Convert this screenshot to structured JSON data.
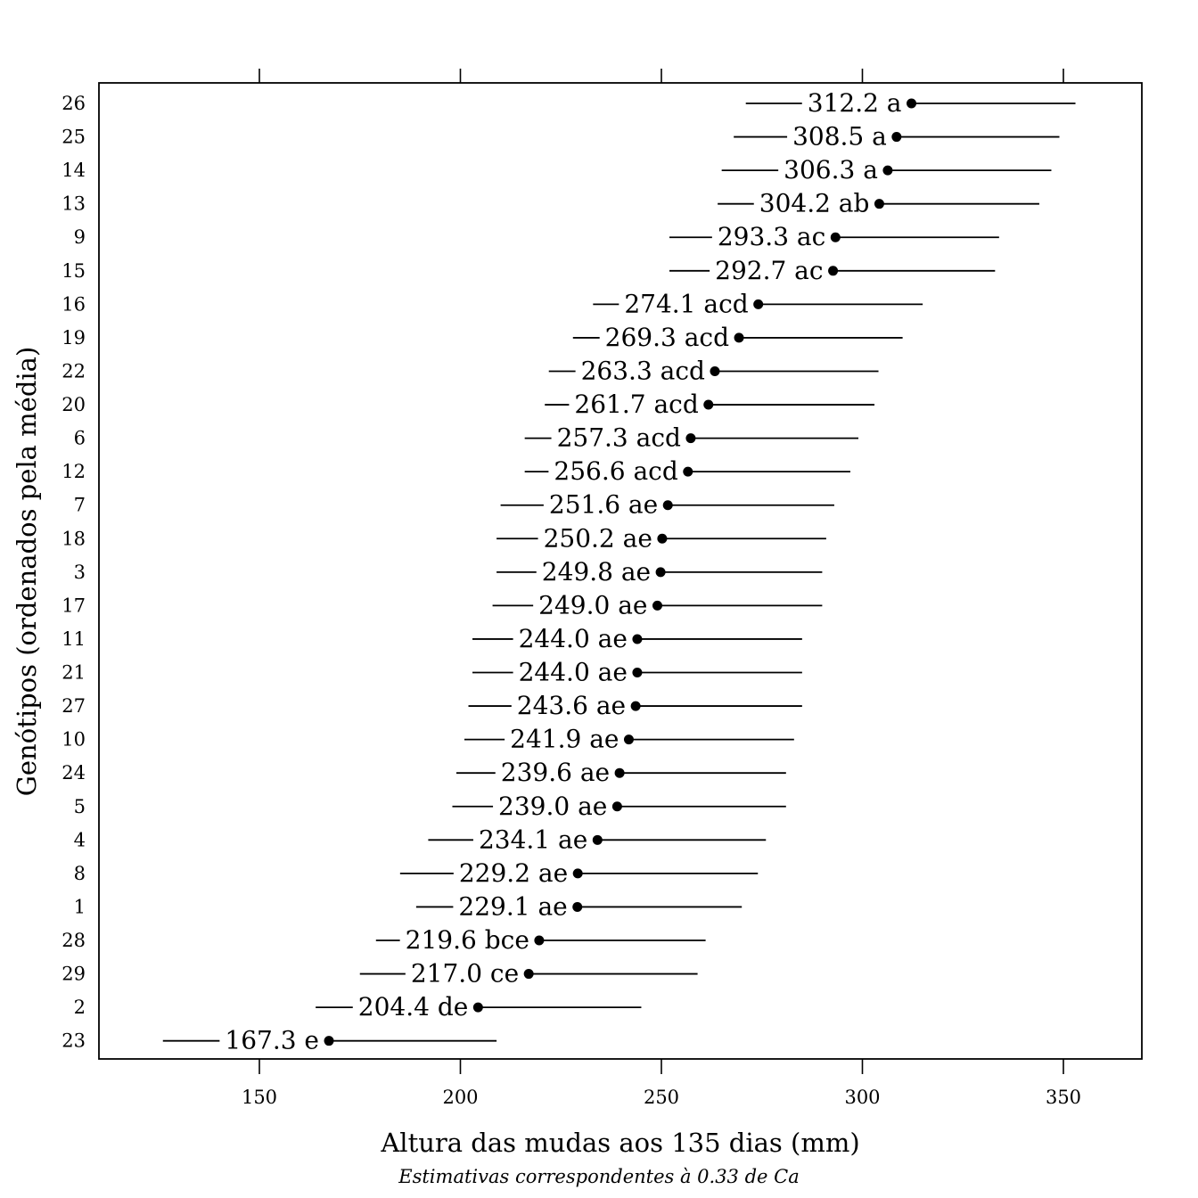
{
  "chart_data": {
    "type": "scatter",
    "subtype": "dot-plot-with-intervals",
    "xlabel": "Altura das mudas aos 135 dias (mm)",
    "subtitle": "Estimativas correspondentes à 0.33 de Ca",
    "ylabel": "Genótipos (ordenados pela média)",
    "xlim": [
      110,
      370
    ],
    "xticks": [
      150,
      200,
      250,
      300,
      350
    ],
    "grid": false,
    "points": [
      {
        "genotype": "26",
        "mean": 312.2,
        "lower": 271,
        "upper": 353,
        "label": "312.2 a"
      },
      {
        "genotype": "25",
        "mean": 308.5,
        "lower": 268,
        "upper": 349,
        "label": "308.5 a"
      },
      {
        "genotype": "14",
        "mean": 306.3,
        "lower": 265,
        "upper": 347,
        "label": "306.3 a"
      },
      {
        "genotype": "13",
        "mean": 304.2,
        "lower": 264,
        "upper": 344,
        "label": "304.2 ab"
      },
      {
        "genotype": "9",
        "mean": 293.3,
        "lower": 252,
        "upper": 334,
        "label": "293.3 ac"
      },
      {
        "genotype": "15",
        "mean": 292.7,
        "lower": 252,
        "upper": 333,
        "label": "292.7 ac"
      },
      {
        "genotype": "16",
        "mean": 274.1,
        "lower": 233,
        "upper": 315,
        "label": "274.1 acd"
      },
      {
        "genotype": "19",
        "mean": 269.3,
        "lower": 228,
        "upper": 310,
        "label": "269.3 acd"
      },
      {
        "genotype": "22",
        "mean": 263.3,
        "lower": 222,
        "upper": 304,
        "label": "263.3 acd"
      },
      {
        "genotype": "20",
        "mean": 261.7,
        "lower": 221,
        "upper": 303,
        "label": "261.7 acd"
      },
      {
        "genotype": "6",
        "mean": 257.3,
        "lower": 216,
        "upper": 299,
        "label": "257.3 acd"
      },
      {
        "genotype": "12",
        "mean": 256.6,
        "lower": 216,
        "upper": 297,
        "label": "256.6 acd"
      },
      {
        "genotype": "7",
        "mean": 251.6,
        "lower": 210,
        "upper": 293,
        "label": "251.6 ae"
      },
      {
        "genotype": "18",
        "mean": 250.2,
        "lower": 209,
        "upper": 291,
        "label": "250.2 ae"
      },
      {
        "genotype": "3",
        "mean": 249.8,
        "lower": 209,
        "upper": 290,
        "label": "249.8 ae"
      },
      {
        "genotype": "17",
        "mean": 249.0,
        "lower": 208,
        "upper": 290,
        "label": "249.0 ae"
      },
      {
        "genotype": "11",
        "mean": 244.0,
        "lower": 203,
        "upper": 285,
        "label": "244.0 ae"
      },
      {
        "genotype": "21",
        "mean": 244.0,
        "lower": 203,
        "upper": 285,
        "label": "244.0 ae"
      },
      {
        "genotype": "27",
        "mean": 243.6,
        "lower": 202,
        "upper": 285,
        "label": "243.6 ae"
      },
      {
        "genotype": "10",
        "mean": 241.9,
        "lower": 201,
        "upper": 283,
        "label": "241.9 ae"
      },
      {
        "genotype": "24",
        "mean": 239.6,
        "lower": 199,
        "upper": 281,
        "label": "239.6 ae"
      },
      {
        "genotype": "5",
        "mean": 239.0,
        "lower": 198,
        "upper": 281,
        "label": "239.0 ae"
      },
      {
        "genotype": "4",
        "mean": 234.1,
        "lower": 192,
        "upper": 276,
        "label": "234.1 ae"
      },
      {
        "genotype": "8",
        "mean": 229.2,
        "lower": 185,
        "upper": 274,
        "label": "229.2 ae"
      },
      {
        "genotype": "1",
        "mean": 229.1,
        "lower": 189,
        "upper": 270,
        "label": "229.1 ae"
      },
      {
        "genotype": "28",
        "mean": 219.6,
        "lower": 179,
        "upper": 261,
        "label": "219.6 bce"
      },
      {
        "genotype": "29",
        "mean": 217.0,
        "lower": 175,
        "upper": 259,
        "label": "217.0 ce"
      },
      {
        "genotype": "2",
        "mean": 204.4,
        "lower": 164,
        "upper": 245,
        "label": "204.4 de"
      },
      {
        "genotype": "23",
        "mean": 167.3,
        "lower": 126,
        "upper": 209,
        "label": "167.3 e"
      }
    ]
  }
}
